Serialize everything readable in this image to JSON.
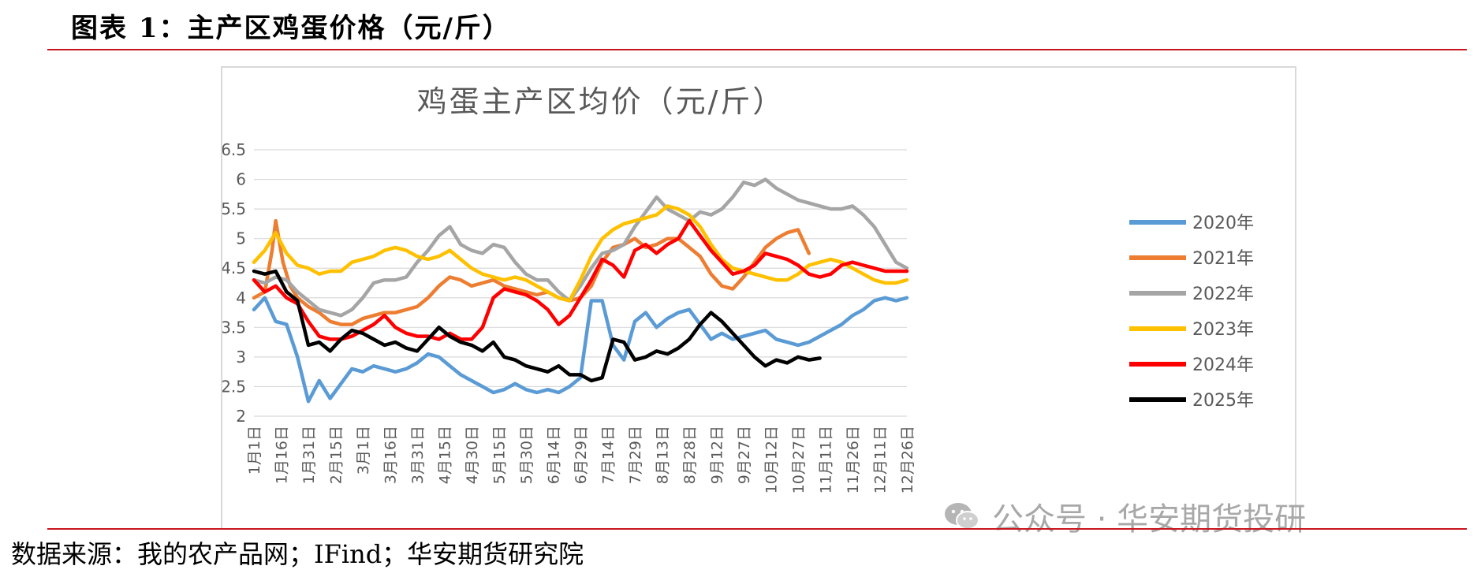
{
  "heading": "图表 1：主产区鸡蛋价格（元/斤）",
  "source": "数据来源：我的农产品网；IFind；华安期货研究院",
  "watermark": "公众号 · 华安期货投研",
  "chart_data": {
    "type": "line",
    "title": "鸡蛋主产区均价（元/斤）",
    "xlabel": "",
    "ylabel": "",
    "ylim": [
      2,
      6.5
    ],
    "y_ticks": [
      2,
      2.5,
      3,
      3.5,
      4,
      4.5,
      5,
      5.5,
      6,
      6.5
    ],
    "y_tick_labels": [
      "2",
      "2.5",
      "3",
      "3.5",
      "4",
      "4.5",
      "5",
      "5.5",
      "6",
      "6.5"
    ],
    "x": [
      0,
      15,
      30,
      45,
      60,
      75,
      90,
      105,
      120,
      135,
      150,
      165,
      180,
      195,
      210,
      225,
      240,
      255,
      270,
      285,
      300,
      315,
      330,
      345,
      360
    ],
    "x_range": [
      0,
      360
    ],
    "x_tick_labels": [
      "1月1日",
      "1月16日",
      "1月31日",
      "2月15日",
      "3月1日",
      "3月16日",
      "3月31日",
      "4月15日",
      "4月30日",
      "5月15日",
      "5月30日",
      "6月14日",
      "6月29日",
      "7月14日",
      "7月29日",
      "8月13日",
      "8月28日",
      "9月12日",
      "9月27日",
      "10月12日",
      "10月27日",
      "11月11日",
      "11月26日",
      "12月11日",
      "12月26日"
    ],
    "legend_position": "right",
    "series": [
      {
        "name": "2020年",
        "color": "#5b9bd5",
        "x": [
          0,
          6,
          12,
          18,
          24,
          30,
          36,
          42,
          48,
          54,
          60,
          66,
          72,
          78,
          84,
          90,
          96,
          102,
          108,
          114,
          120,
          126,
          132,
          138,
          144,
          150,
          156,
          162,
          168,
          174,
          180,
          186,
          192,
          198,
          204,
          210,
          216,
          222,
          228,
          234,
          240,
          246,
          252,
          258,
          264,
          270,
          276,
          282,
          288,
          294,
          300,
          306,
          312,
          318,
          324,
          330,
          336,
          342,
          348,
          354,
          360
        ],
        "values": [
          3.8,
          4.0,
          3.6,
          3.55,
          3.0,
          2.25,
          2.6,
          2.3,
          2.55,
          2.8,
          2.75,
          2.85,
          2.8,
          2.75,
          2.8,
          2.9,
          3.05,
          3.0,
          2.85,
          2.7,
          2.6,
          2.5,
          2.4,
          2.45,
          2.55,
          2.45,
          2.4,
          2.45,
          2.4,
          2.5,
          2.65,
          3.95,
          3.95,
          3.2,
          2.95,
          3.6,
          3.75,
          3.5,
          3.65,
          3.75,
          3.8,
          3.55,
          3.3,
          3.4,
          3.3,
          3.35,
          3.4,
          3.45,
          3.3,
          3.25,
          3.2,
          3.25,
          3.35,
          3.45,
          3.55,
          3.7,
          3.8,
          3.95,
          4.0,
          3.95,
          4.0
        ]
      },
      {
        "name": "2021年",
        "color": "#ed7d31",
        "x": [
          0,
          6,
          10,
          12,
          16,
          20,
          24,
          30,
          36,
          42,
          48,
          54,
          60,
          66,
          72,
          78,
          84,
          90,
          96,
          102,
          108,
          114,
          120,
          126,
          132,
          138,
          144,
          150,
          156,
          162,
          168,
          174,
          180,
          186,
          192,
          198,
          204,
          210,
          216,
          222,
          228,
          234,
          240,
          246,
          252,
          258,
          264,
          270,
          276,
          282,
          288,
          294,
          300,
          306
        ],
        "values": [
          4.0,
          4.1,
          4.8,
          5.3,
          4.6,
          4.2,
          4.0,
          3.85,
          3.75,
          3.6,
          3.55,
          3.55,
          3.65,
          3.7,
          3.75,
          3.75,
          3.8,
          3.85,
          4.0,
          4.2,
          4.35,
          4.3,
          4.2,
          4.25,
          4.3,
          4.2,
          4.15,
          4.1,
          4.05,
          4.1,
          4.0,
          3.95,
          4.0,
          4.2,
          4.6,
          4.85,
          4.9,
          5.0,
          4.85,
          4.9,
          5.0,
          5.0,
          4.85,
          4.7,
          4.4,
          4.2,
          4.15,
          4.35,
          4.6,
          4.85,
          5.0,
          5.1,
          5.15,
          4.75
        ]
      },
      {
        "name": "2022年",
        "color": "#a5a5a5",
        "x": [
          0,
          6,
          12,
          18,
          24,
          30,
          36,
          42,
          48,
          54,
          60,
          66,
          72,
          78,
          84,
          90,
          96,
          102,
          108,
          114,
          120,
          126,
          132,
          138,
          144,
          150,
          156,
          162,
          168,
          174,
          180,
          186,
          192,
          198,
          204,
          210,
          216,
          222,
          228,
          234,
          240,
          246,
          252,
          258,
          264,
          270,
          276,
          282,
          288,
          294,
          300,
          306,
          312,
          318,
          324,
          330,
          336,
          342,
          348,
          354,
          360
        ],
        "values": [
          4.3,
          4.25,
          4.35,
          4.3,
          4.1,
          3.95,
          3.8,
          3.75,
          3.7,
          3.8,
          4.0,
          4.25,
          4.3,
          4.3,
          4.35,
          4.6,
          4.8,
          5.05,
          5.2,
          4.9,
          4.8,
          4.75,
          4.9,
          4.85,
          4.6,
          4.4,
          4.3,
          4.3,
          4.1,
          3.95,
          4.2,
          4.5,
          4.75,
          4.8,
          4.9,
          5.2,
          5.45,
          5.7,
          5.5,
          5.4,
          5.3,
          5.45,
          5.4,
          5.5,
          5.7,
          5.95,
          5.9,
          6.0,
          5.85,
          5.75,
          5.65,
          5.6,
          5.55,
          5.5,
          5.5,
          5.55,
          5.4,
          5.2,
          4.9,
          4.6,
          4.5
        ]
      },
      {
        "name": "2023年",
        "color": "#ffc000",
        "x": [
          0,
          6,
          12,
          18,
          24,
          30,
          36,
          42,
          48,
          54,
          60,
          66,
          72,
          78,
          84,
          90,
          96,
          102,
          108,
          114,
          120,
          126,
          132,
          138,
          144,
          150,
          156,
          162,
          168,
          174,
          180,
          186,
          192,
          198,
          204,
          210,
          216,
          222,
          228,
          234,
          240,
          246,
          252,
          258,
          264,
          270,
          276,
          282,
          288,
          294,
          300,
          306,
          312,
          318,
          324,
          330,
          336,
          342,
          348,
          354,
          360
        ],
        "values": [
          4.6,
          4.8,
          5.1,
          4.75,
          4.55,
          4.5,
          4.4,
          4.45,
          4.45,
          4.6,
          4.65,
          4.7,
          4.8,
          4.85,
          4.8,
          4.7,
          4.65,
          4.7,
          4.8,
          4.65,
          4.5,
          4.4,
          4.35,
          4.3,
          4.35,
          4.3,
          4.2,
          4.1,
          4.0,
          3.95,
          4.3,
          4.7,
          5.0,
          5.15,
          5.25,
          5.3,
          5.35,
          5.4,
          5.55,
          5.5,
          5.4,
          5.2,
          4.9,
          4.65,
          4.5,
          4.45,
          4.4,
          4.35,
          4.3,
          4.3,
          4.4,
          4.55,
          4.6,
          4.65,
          4.6,
          4.5,
          4.4,
          4.3,
          4.25,
          4.25,
          4.3
        ]
      },
      {
        "name": "2024年",
        "color": "#ff0000",
        "x": [
          0,
          6,
          12,
          18,
          24,
          30,
          36,
          42,
          48,
          54,
          60,
          66,
          72,
          78,
          84,
          90,
          96,
          102,
          108,
          114,
          120,
          126,
          132,
          138,
          144,
          150,
          156,
          162,
          168,
          174,
          180,
          186,
          192,
          198,
          204,
          210,
          216,
          222,
          228,
          234,
          240,
          246,
          252,
          258,
          264,
          270,
          276,
          282,
          288,
          294,
          300,
          306,
          312,
          318,
          324,
          330,
          336,
          342,
          348,
          354,
          360
        ],
        "values": [
          4.3,
          4.1,
          4.2,
          4.0,
          3.9,
          3.6,
          3.35,
          3.3,
          3.3,
          3.35,
          3.45,
          3.55,
          3.7,
          3.5,
          3.4,
          3.35,
          3.35,
          3.3,
          3.4,
          3.3,
          3.3,
          3.5,
          4.0,
          4.15,
          4.1,
          4.05,
          3.95,
          3.8,
          3.55,
          3.7,
          4.0,
          4.3,
          4.65,
          4.55,
          4.35,
          4.8,
          4.9,
          4.75,
          4.9,
          5.0,
          5.3,
          5.05,
          4.8,
          4.6,
          4.4,
          4.45,
          4.55,
          4.75,
          4.7,
          4.65,
          4.55,
          4.4,
          4.35,
          4.4,
          4.55,
          4.6,
          4.55,
          4.5,
          4.45,
          4.45,
          4.45
        ]
      },
      {
        "name": "2025年",
        "color": "#000000",
        "x": [
          0,
          6,
          12,
          18,
          24,
          30,
          36,
          42,
          48,
          54,
          60,
          66,
          72,
          78,
          84,
          90,
          96,
          102,
          108,
          114,
          120,
          126,
          132,
          138,
          144,
          150,
          156,
          162,
          168,
          174,
          180,
          186,
          192,
          198,
          204,
          210,
          216,
          222,
          228,
          234,
          240,
          246,
          252,
          258,
          264,
          270,
          276,
          282,
          288,
          294,
          300,
          306,
          312
        ],
        "values": [
          4.45,
          4.4,
          4.45,
          4.1,
          3.95,
          3.2,
          3.25,
          3.1,
          3.3,
          3.45,
          3.4,
          3.3,
          3.2,
          3.25,
          3.15,
          3.1,
          3.3,
          3.5,
          3.35,
          3.25,
          3.2,
          3.1,
          3.25,
          3.0,
          2.95,
          2.85,
          2.8,
          2.75,
          2.85,
          2.7,
          2.7,
          2.6,
          2.65,
          3.3,
          3.25,
          2.95,
          3.0,
          3.1,
          3.05,
          3.15,
          3.3,
          3.55,
          3.75,
          3.6,
          3.4,
          3.2,
          3.0,
          2.85,
          2.95,
          2.9,
          3.0,
          2.95,
          2.98
        ]
      }
    ]
  }
}
